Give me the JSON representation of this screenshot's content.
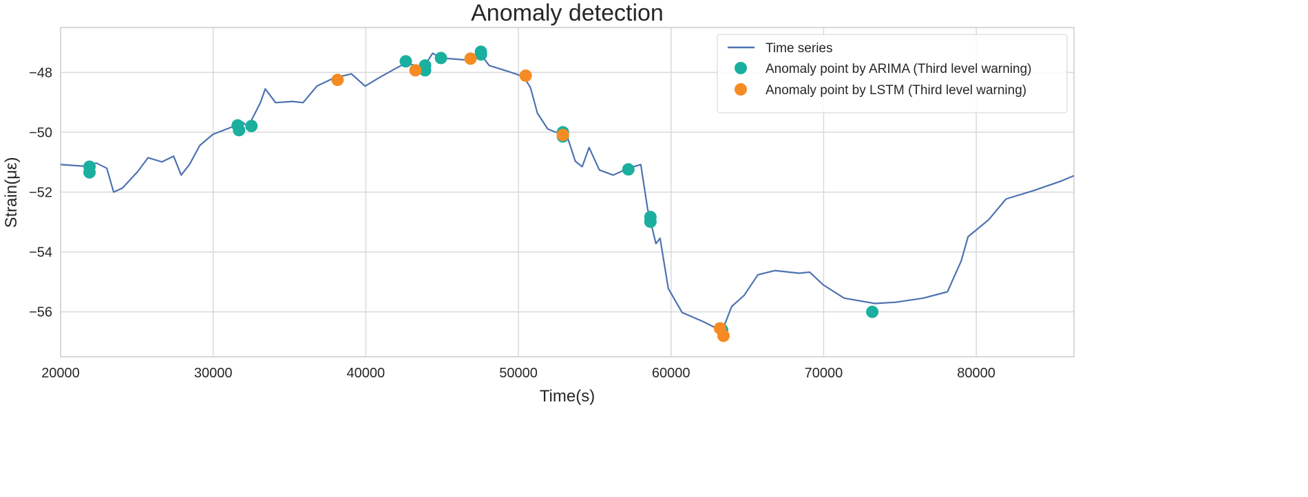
{
  "chart_data": {
    "type": "line",
    "title": "Anomaly detection",
    "xlabel": "Time(s)",
    "ylabel": "Strain(με)",
    "xlim": [
      20000,
      86400
    ],
    "ylim": [
      -57.5,
      -46.5
    ],
    "xticks": [
      20000,
      30000,
      40000,
      50000,
      60000,
      70000,
      80000
    ],
    "yticks": [
      -48,
      -50,
      -52,
      -54,
      -56
    ],
    "xtick_labels": [
      "20000",
      "30000",
      "40000",
      "50000",
      "60000",
      "70000",
      "80000"
    ],
    "ytick_labels": [
      "−48",
      "−50",
      "−52",
      "−54",
      "−56"
    ],
    "grid": true,
    "legend_position": "top-right",
    "series": [
      {
        "name": "Time series",
        "type": "line",
        "color": "#4c72b0",
        "x": [
          20000,
          21445,
          22348,
          23025,
          23477,
          24064,
          25057,
          25734,
          26637,
          27405,
          27901,
          28443,
          29120,
          29978,
          31152,
          31920,
          32281,
          33094,
          33410,
          34087,
          35216,
          35893,
          36796,
          37925,
          39053,
          39956,
          40859,
          41988,
          42665,
          43343,
          43794,
          44381,
          44923,
          46729,
          47542,
          48083,
          49212,
          50341,
          50793,
          51244,
          51921,
          52824,
          53140,
          53727,
          54179,
          54630,
          55308,
          56211,
          57204,
          58016,
          58468,
          59010,
          59281,
          59822,
          60725,
          62080,
          63344,
          63976,
          64789,
          65692,
          66821,
          68401,
          69078,
          69981,
          71336,
          73367,
          74722,
          76528,
          78108,
          79011,
          79462,
          80817,
          81946,
          83752,
          85558,
          86400
        ],
        "y": [
          -51.08,
          -51.13,
          -51.03,
          -51.2,
          -52.0,
          -51.86,
          -51.31,
          -50.85,
          -50.99,
          -50.8,
          -51.43,
          -51.08,
          -50.44,
          -50.07,
          -49.84,
          -49.66,
          -49.82,
          -49.01,
          -48.55,
          -49.01,
          -48.97,
          -49.01,
          -48.46,
          -48.18,
          -48.05,
          -48.46,
          -48.18,
          -47.86,
          -47.68,
          -47.79,
          -47.82,
          -47.36,
          -47.52,
          -47.59,
          -47.4,
          -47.77,
          -47.95,
          -48.14,
          -48.51,
          -49.36,
          -49.89,
          -50.07,
          -50.05,
          -50.97,
          -51.15,
          -50.51,
          -51.26,
          -51.43,
          -51.2,
          -51.08,
          -52.57,
          -53.72,
          -53.54,
          -55.22,
          -56.02,
          -56.32,
          -56.64,
          -55.82,
          -55.45,
          -54.76,
          -54.62,
          -54.71,
          -54.67,
          -55.1,
          -55.54,
          -55.72,
          -55.68,
          -55.54,
          -55.33,
          -54.3,
          -53.49,
          -52.92,
          -52.23,
          -51.95,
          -51.63,
          -51.45
        ]
      },
      {
        "name": "Anomaly point by ARIMA (Third level warning)",
        "type": "scatter",
        "color": "#1aaf9f",
        "x": [
          21896,
          21896,
          31604,
          31694,
          32507,
          42620,
          43884,
          43884,
          44923,
          47542,
          47542,
          52914,
          52914,
          57204,
          58649,
          58649,
          63344,
          73187
        ],
        "y": [
          -51.15,
          -51.34,
          -49.77,
          -49.93,
          -49.79,
          -47.63,
          -47.77,
          -47.93,
          -47.52,
          -47.4,
          -47.31,
          -50.0,
          -50.14,
          -51.24,
          -52.83,
          -52.99,
          -56.6,
          -56.0
        ]
      },
      {
        "name": "Anomaly point by LSTM (Third level warning)",
        "type": "scatter",
        "color": "#f58b22",
        "x": [
          38151,
          43252,
          46864,
          50476,
          52914,
          63209,
          63435
        ],
        "y": [
          -48.25,
          -47.93,
          -47.54,
          -48.11,
          -50.09,
          -56.55,
          -56.8
        ]
      }
    ]
  }
}
